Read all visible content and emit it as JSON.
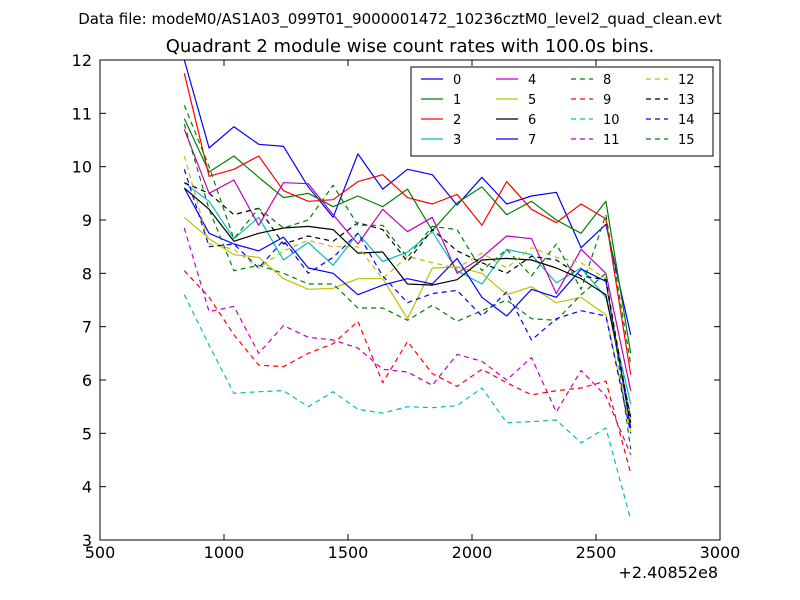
{
  "chart_data": {
    "type": "line",
    "supertitle": "Data file: modeM0/AS1A03_099T01_9000001472_10236cztM0_level2_quad_clean.evt",
    "title": "Quadrant 2 module wise count rates with 100.0s bins.",
    "xlabel": "",
    "ylabel": "",
    "x_offset_label": "+2.40852e8",
    "xlim": [
      500,
      3000
    ],
    "ylim": [
      3,
      12
    ],
    "xticks": [
      "500",
      "1000",
      "1500",
      "2000",
      "2500",
      "3000"
    ],
    "yticks": [
      "3",
      "4",
      "5",
      "6",
      "7",
      "8",
      "9",
      "10",
      "11",
      "12"
    ],
    "x": [
      840,
      940,
      1040,
      1140,
      1240,
      1340,
      1440,
      1540,
      1640,
      1740,
      1840,
      1940,
      2040,
      2140,
      2240,
      2340,
      2440,
      2540,
      2640
    ],
    "legend_position": "top-right",
    "series": [
      {
        "name": "0",
        "color": "#0000ff",
        "dash": "solid",
        "values": [
          12.0,
          10.35,
          10.75,
          10.42,
          10.38,
          9.62,
          9.05,
          10.24,
          9.58,
          9.95,
          9.85,
          9.28,
          9.8,
          9.3,
          9.45,
          9.52,
          8.48,
          8.92,
          6.85
        ]
      },
      {
        "name": "1",
        "color": "#008000",
        "dash": "solid",
        "values": [
          10.9,
          9.9,
          10.2,
          9.8,
          9.42,
          9.5,
          9.25,
          9.45,
          9.25,
          9.58,
          8.8,
          9.32,
          9.62,
          9.1,
          9.35,
          9.0,
          8.75,
          9.35,
          6.5
        ]
      },
      {
        "name": "2",
        "color": "#ff0000",
        "dash": "solid",
        "values": [
          11.75,
          9.82,
          9.95,
          10.2,
          9.55,
          9.35,
          9.38,
          9.72,
          9.85,
          9.42,
          9.3,
          9.48,
          8.9,
          9.72,
          9.2,
          8.95,
          9.3,
          9.02,
          6.1
        ]
      },
      {
        "name": "3",
        "color": "#00bfbf",
        "dash": "solid",
        "values": [
          9.7,
          9.35,
          8.65,
          9.05,
          8.25,
          8.58,
          8.15,
          8.75,
          8.22,
          8.4,
          8.78,
          8.05,
          7.8,
          8.45,
          8.35,
          7.82,
          8.1,
          7.55,
          5.55
        ]
      },
      {
        "name": "4",
        "color": "#bf00bf",
        "dash": "solid",
        "values": [
          10.7,
          9.5,
          9.75,
          8.9,
          9.7,
          9.68,
          9.1,
          8.55,
          9.2,
          8.78,
          9.05,
          8.0,
          8.3,
          8.7,
          8.65,
          7.62,
          8.45,
          8.0,
          5.8
        ]
      },
      {
        "name": "5",
        "color": "#bfbf00",
        "dash": "solid",
        "values": [
          9.05,
          8.65,
          8.35,
          8.3,
          7.9,
          7.7,
          7.72,
          7.9,
          7.9,
          7.15,
          8.1,
          8.12,
          8.0,
          7.6,
          7.75,
          7.45,
          7.55,
          7.22,
          5.05
        ]
      },
      {
        "name": "6",
        "color": "#000000",
        "dash": "solid",
        "values": [
          9.6,
          9.2,
          8.6,
          8.75,
          8.85,
          8.88,
          8.82,
          8.38,
          8.4,
          7.8,
          7.78,
          7.88,
          8.25,
          8.28,
          8.25,
          8.1,
          7.9,
          7.6,
          5.3
        ]
      },
      {
        "name": "7",
        "color": "#0000ff",
        "dash": "solid",
        "values": [
          9.6,
          8.75,
          8.55,
          8.42,
          8.68,
          8.1,
          8.0,
          7.6,
          7.78,
          7.9,
          7.8,
          8.28,
          7.55,
          7.2,
          7.7,
          7.55,
          8.08,
          7.85,
          5.1
        ]
      },
      {
        "name": "8",
        "color": "#008000",
        "dash": "dashed",
        "values": [
          10.8,
          9.2,
          8.05,
          8.15,
          8.0,
          7.8,
          7.8,
          7.35,
          7.35,
          7.12,
          7.4,
          7.1,
          7.3,
          7.5,
          7.15,
          7.12,
          7.6,
          8.0,
          4.7
        ]
      },
      {
        "name": "9",
        "color": "#ff0000",
        "dash": "dashed",
        "values": [
          8.05,
          7.55,
          6.85,
          6.28,
          6.25,
          6.5,
          6.68,
          7.1,
          5.95,
          6.72,
          6.12,
          5.88,
          6.2,
          5.95,
          5.72,
          5.8,
          5.85,
          5.98,
          4.25
        ]
      },
      {
        "name": "10",
        "color": "#00bfbf",
        "dash": "dashed",
        "values": [
          7.6,
          6.65,
          5.75,
          5.78,
          5.8,
          5.5,
          5.78,
          5.45,
          5.38,
          5.5,
          5.48,
          5.52,
          5.85,
          5.2,
          5.22,
          5.25,
          4.82,
          5.1,
          3.38
        ]
      },
      {
        "name": "11",
        "color": "#bf00bf",
        "dash": "dashed",
        "values": [
          8.85,
          7.28,
          7.38,
          6.5,
          7.02,
          6.8,
          6.75,
          6.6,
          6.2,
          6.15,
          5.9,
          6.48,
          6.35,
          6.0,
          6.42,
          5.4,
          6.18,
          5.7,
          4.6
        ]
      },
      {
        "name": "12",
        "color": "#bfbf00",
        "dash": "dashed",
        "values": [
          10.2,
          8.55,
          8.45,
          8.1,
          8.42,
          8.62,
          8.5,
          8.5,
          7.9,
          8.32,
          8.2,
          8.1,
          8.38,
          8.1,
          8.48,
          8.3,
          8.2,
          7.9,
          5.25
        ]
      },
      {
        "name": "13",
        "color": "#000000",
        "dash": "dashed",
        "values": [
          9.7,
          9.5,
          9.1,
          9.22,
          8.55,
          8.7,
          8.6,
          8.95,
          8.82,
          8.22,
          8.82,
          8.42,
          8.2,
          8.0,
          8.32,
          8.25,
          7.95,
          7.88,
          5.2
        ]
      },
      {
        "name": "14",
        "color": "#0000ff",
        "dash": "dashed",
        "values": [
          9.95,
          8.5,
          8.55,
          8.1,
          8.62,
          8.0,
          8.3,
          8.75,
          7.95,
          7.45,
          7.62,
          7.68,
          7.2,
          7.65,
          6.75,
          7.15,
          7.3,
          7.2,
          5.0
        ]
      },
      {
        "name": "15",
        "color": "#008000",
        "dash": "dashed",
        "values": [
          11.15,
          10.0,
          8.65,
          9.22,
          8.85,
          9.0,
          9.65,
          8.9,
          8.9,
          8.3,
          8.88,
          8.82,
          8.05,
          8.45,
          7.95,
          8.55,
          7.7,
          9.1,
          6.3
        ]
      }
    ]
  }
}
